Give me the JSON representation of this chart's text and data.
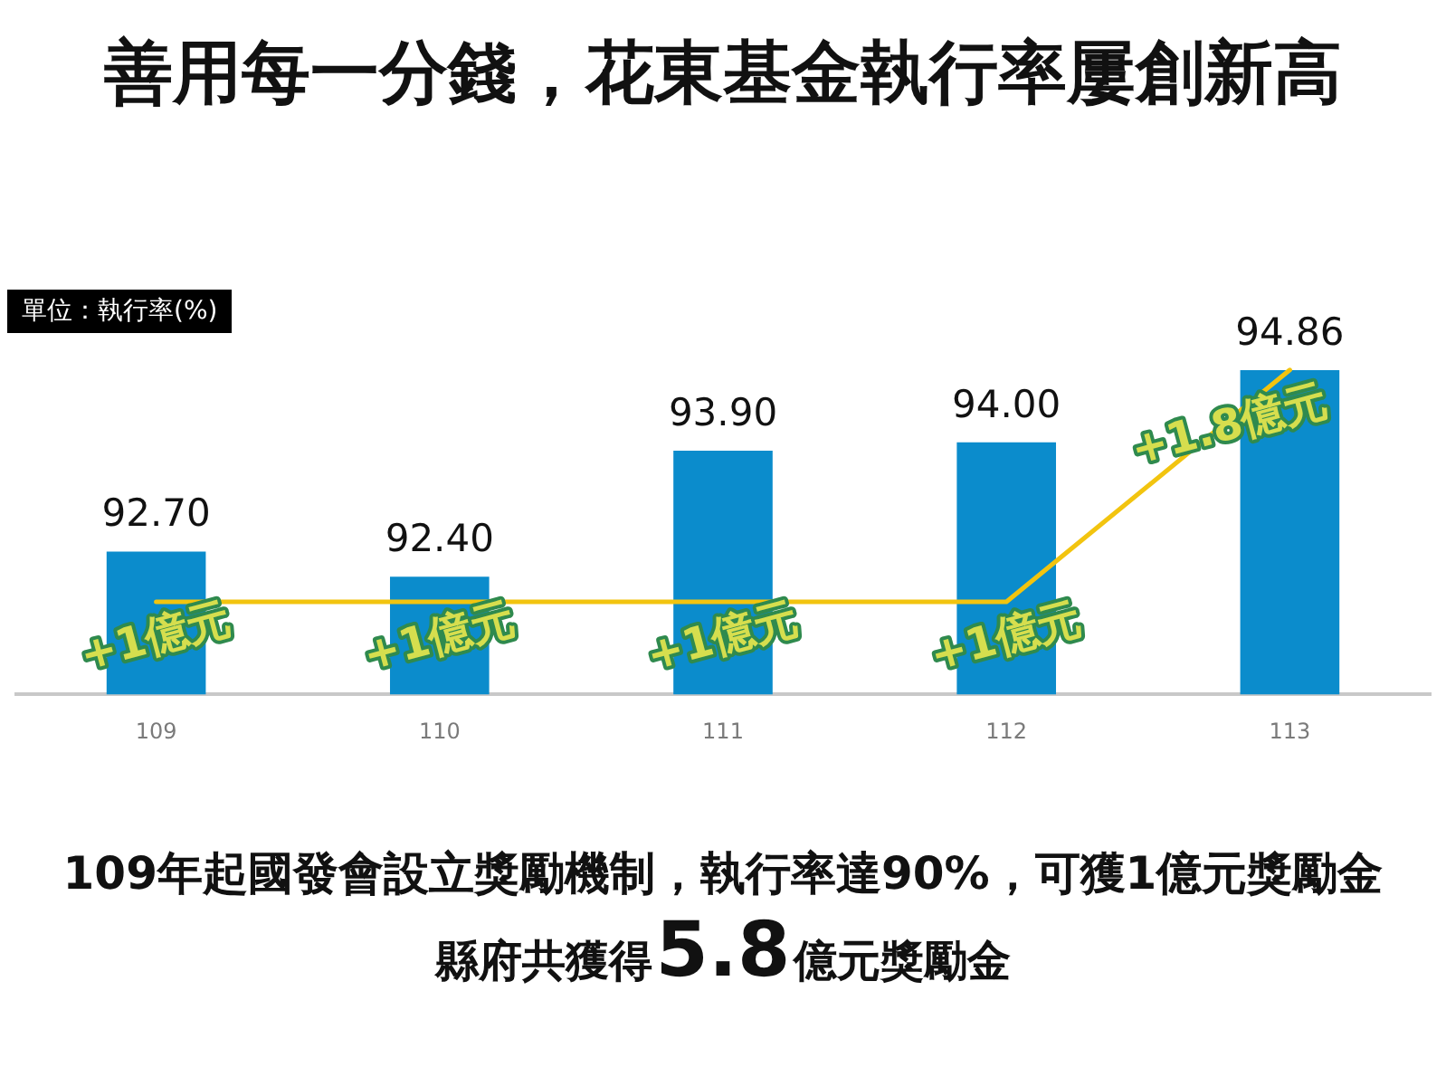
{
  "chart_data": {
    "type": "bar",
    "title": "善用每一分錢，花東基金執行率屢創新高",
    "ylabel": "單位：執行率(%)",
    "categories": [
      "109",
      "110",
      "111",
      "112",
      "113"
    ],
    "series": [
      {
        "color": "#0b8ccc",
        "values": [
          92.7,
          92.4,
          93.9,
          94.0,
          94.86
        ],
        "value_labels": [
          "92.70",
          "92.40",
          "93.90",
          "94.00",
          "94.86"
        ]
      },
      {
        "type": "line",
        "axis": "y2",
        "color": "#f2c40f",
        "values": [
          1,
          1,
          1,
          1,
          1.8
        ],
        "value_labels": [
          "+1億元",
          "+1億元",
          "+1億元",
          "+1億元",
          "+1.8億元"
        ]
      }
    ],
    "tick_labels": "x",
    "annotations": [
      "109年起國發會設立獎勵機制，執行率達90%，可獲1億元獎勵金",
      "縣府共獲得5.8億元獎勵金"
    ]
  }
}
